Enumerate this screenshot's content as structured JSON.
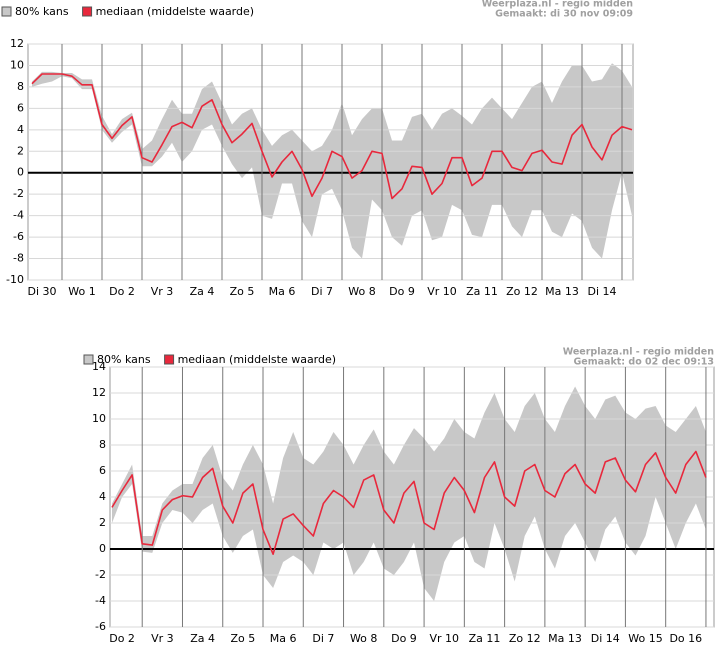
{
  "chart_data": [
    {
      "type": "line",
      "source": "Weerplaza.nl - regio midden",
      "created": "Gemaakt: di 30 nov 09:09",
      "categories": [
        "Di 30",
        "Wo 1",
        "Do 2",
        "Vr 3",
        "Za 4",
        "Zo 5",
        "Ma 6",
        "Di 7",
        "Wo 8",
        "Do 9",
        "Vr 10",
        "Za 11",
        "Zo 12",
        "Ma 13",
        "Di 14"
      ],
      "xlim": [
        0.15,
        15.275
      ],
      "xticks": [
        1,
        2,
        3,
        4,
        5,
        6,
        7,
        8,
        9,
        10,
        11,
        12,
        13,
        14,
        15
      ],
      "ylim": [
        -10,
        12
      ],
      "yticks": [
        -10,
        -8,
        -6,
        -4,
        -2,
        0,
        2,
        4,
        6,
        8,
        10,
        12
      ],
      "grid": true,
      "x": [
        0.25,
        0.5,
        0.75,
        1,
        1.25,
        1.5,
        1.75,
        2,
        2.25,
        2.5,
        2.75,
        3,
        3.25,
        3.5,
        3.75,
        4,
        4.25,
        4.5,
        4.75,
        5,
        5.25,
        5.5,
        5.75,
        6,
        6.25,
        6.5,
        6.75,
        7,
        7.25,
        7.5,
        7.75,
        8,
        8.25,
        8.5,
        8.75,
        9,
        9.25,
        9.5,
        9.75,
        10,
        10.25,
        10.5,
        10.75,
        11,
        11.25,
        11.5,
        11.75,
        12,
        12.25,
        12.5,
        12.75,
        13,
        13.25,
        13.5,
        13.75,
        14,
        14.25,
        14.5,
        14.75,
        15,
        15.25
      ],
      "series": [
        {
          "name": "80% kans",
          "color": "#c8c8c8",
          "low": [
            8.0,
            8.3,
            8.5,
            9.0,
            8.8,
            7.8,
            7.8,
            4.0,
            2.8,
            3.8,
            4.5,
            0.6,
            0.6,
            1.5,
            2.8,
            1.0,
            2.0,
            4.0,
            4.5,
            2.5,
            0.8,
            -0.5,
            0.5,
            -4.0,
            -4.3,
            -1.0,
            -1.0,
            -4.5,
            -6.0,
            -2.0,
            -1.5,
            -3.5,
            -7.0,
            -8.0,
            -2.5,
            -3.5,
            -6.0,
            -6.8,
            -4.0,
            -3.5,
            -6.3,
            -6.0,
            -3.0,
            -3.5,
            -5.8,
            -6.0,
            -3.0,
            -3.0,
            -5.0,
            -6.0,
            -3.5,
            -3.5,
            -5.5,
            -6.0,
            -3.8,
            -4.5,
            -7.0,
            -8.0,
            -3.5,
            0.0,
            -4.0
          ],
          "high": [
            8.5,
            9.4,
            9.4,
            9.3,
            9.3,
            8.7,
            8.7,
            5.3,
            3.6,
            5.0,
            5.6,
            2.2,
            3.0,
            5.0,
            6.8,
            5.5,
            5.5,
            7.8,
            8.5,
            6.5,
            4.5,
            5.5,
            6.0,
            4.0,
            2.5,
            3.5,
            4.0,
            3.0,
            2.0,
            2.5,
            4.0,
            6.5,
            3.5,
            5.0,
            6.0,
            6.0,
            3.0,
            3.0,
            5.2,
            5.5,
            4.0,
            5.5,
            6.0,
            5.3,
            4.5,
            6.0,
            7.0,
            6.0,
            5.0,
            6.5,
            8.0,
            8.5,
            6.5,
            8.5,
            10.0,
            10.0,
            8.5,
            8.7,
            10.2,
            9.5,
            8.0
          ]
        },
        {
          "name": "mediaan (middelste waarde)",
          "color": "#e8283c",
          "values": [
            8.3,
            9.2,
            9.2,
            9.2,
            9.0,
            8.2,
            8.2,
            4.5,
            3.2,
            4.4,
            5.2,
            1.4,
            1.0,
            2.6,
            4.3,
            4.7,
            4.2,
            6.2,
            6.8,
            4.5,
            2.8,
            3.6,
            4.6,
            2.0,
            -0.4,
            1.0,
            2.0,
            0.3,
            -2.2,
            -0.5,
            2.0,
            1.5,
            -0.5,
            0.2,
            2.0,
            1.8,
            -2.4,
            -1.5,
            0.6,
            0.5,
            -2.0,
            -1.0,
            1.4,
            1.4,
            -1.2,
            -0.5,
            2.0,
            2.0,
            0.5,
            0.2,
            1.8,
            2.1,
            1.0,
            0.8,
            3.5,
            4.5,
            2.4,
            1.2,
            3.5,
            4.3,
            4.0
          ]
        }
      ]
    },
    {
      "type": "line",
      "source": "Weerplaza.nl - regio midden",
      "created": "Gemaakt: do 02 dec 09:13",
      "categories": [
        "Do 2",
        "Vr 3",
        "Za 4",
        "Zo 5",
        "Ma 6",
        "Di 7",
        "Wo 8",
        "Do 9",
        "Vr 10",
        "Za 11",
        "Zo 12",
        "Ma 13",
        "Di 14",
        "Wo 15",
        "Do 16"
      ],
      "xlim": [
        0.2,
        15.2
      ],
      "xticks": [
        1,
        2,
        3,
        4,
        5,
        6,
        7,
        8,
        9,
        10,
        11,
        12,
        13,
        14,
        15
      ],
      "ylim": [
        -6,
        14
      ],
      "yticks": [
        -6,
        -4,
        -2,
        0,
        2,
        4,
        6,
        8,
        10,
        12,
        14
      ],
      "grid": true,
      "x": [
        0.25,
        0.5,
        0.75,
        1,
        1.25,
        1.5,
        1.75,
        2,
        2.25,
        2.5,
        2.75,
        3,
        3.25,
        3.5,
        3.75,
        4,
        4.25,
        4.5,
        4.75,
        5,
        5.25,
        5.5,
        5.75,
        6,
        6.25,
        6.5,
        6.75,
        7,
        7.25,
        7.5,
        7.75,
        8,
        8.25,
        8.5,
        8.75,
        9,
        9.25,
        9.5,
        9.75,
        10,
        10.25,
        10.5,
        10.75,
        11,
        11.25,
        11.5,
        11.75,
        12,
        12.25,
        12.5,
        12.75,
        13,
        13.25,
        13.5,
        13.75,
        14,
        14.25,
        14.5,
        14.75,
        15
      ],
      "series": [
        {
          "name": "80% kans",
          "color": "#c8c8c8",
          "low": [
            2.0,
            4.0,
            5.0,
            -0.2,
            -0.3,
            2.0,
            3.0,
            2.8,
            2.0,
            3.0,
            3.5,
            1.0,
            -0.3,
            1.0,
            1.5,
            -2.0,
            -3.0,
            -1.0,
            -0.5,
            -1.0,
            -2.0,
            0.5,
            0.0,
            0.5,
            -2.0,
            -1.0,
            0.5,
            -1.5,
            -2.0,
            -1.0,
            0.5,
            -3.0,
            -4.0,
            -1.0,
            0.5,
            1.0,
            -1.0,
            -1.5,
            2.0,
            0.0,
            -2.5,
            1.0,
            2.5,
            0.0,
            -1.5,
            1.0,
            2.0,
            0.5,
            -1.0,
            1.5,
            2.5,
            0.5,
            -0.5,
            1.0,
            4.0,
            2.0,
            0.0,
            2.0,
            3.5,
            1.5
          ],
          "high": [
            3.5,
            5.0,
            6.5,
            1.0,
            1.0,
            3.5,
            4.5,
            5.0,
            5.0,
            7.0,
            8.0,
            5.5,
            4.5,
            6.5,
            8.0,
            6.5,
            3.5,
            7.0,
            9.0,
            7.0,
            6.5,
            7.5,
            9.0,
            8.0,
            6.5,
            8.0,
            9.2,
            7.5,
            6.5,
            8.0,
            9.3,
            8.5,
            7.5,
            8.5,
            10.0,
            9.0,
            8.5,
            10.5,
            12.0,
            10.0,
            9.0,
            11.0,
            12.0,
            10.0,
            9.0,
            11.0,
            12.5,
            11.0,
            10.0,
            11.5,
            11.8,
            10.5,
            10.0,
            10.8,
            11.0,
            9.5,
            9.0,
            10.0,
            11.0,
            9.0
          ]
        },
        {
          "name": "mediaan (middelste waarde)",
          "color": "#e8283c",
          "values": [
            3.2,
            4.5,
            5.7,
            0.4,
            0.3,
            3.0,
            3.8,
            4.1,
            4.0,
            5.5,
            6.2,
            3.3,
            2.0,
            4.3,
            5.0,
            1.5,
            -0.4,
            2.3,
            2.7,
            1.8,
            1.0,
            3.5,
            4.5,
            4.0,
            3.2,
            5.3,
            5.7,
            3.0,
            2.0,
            4.3,
            5.2,
            2.0,
            1.5,
            4.3,
            5.5,
            4.5,
            2.8,
            5.5,
            6.7,
            4.0,
            3.3,
            6.0,
            6.5,
            4.5,
            4.0,
            5.8,
            6.5,
            5.0,
            4.3,
            6.7,
            7.0,
            5.3,
            4.4,
            6.5,
            7.4,
            5.5,
            4.3,
            6.5,
            7.5,
            5.5
          ]
        }
      ]
    }
  ]
}
